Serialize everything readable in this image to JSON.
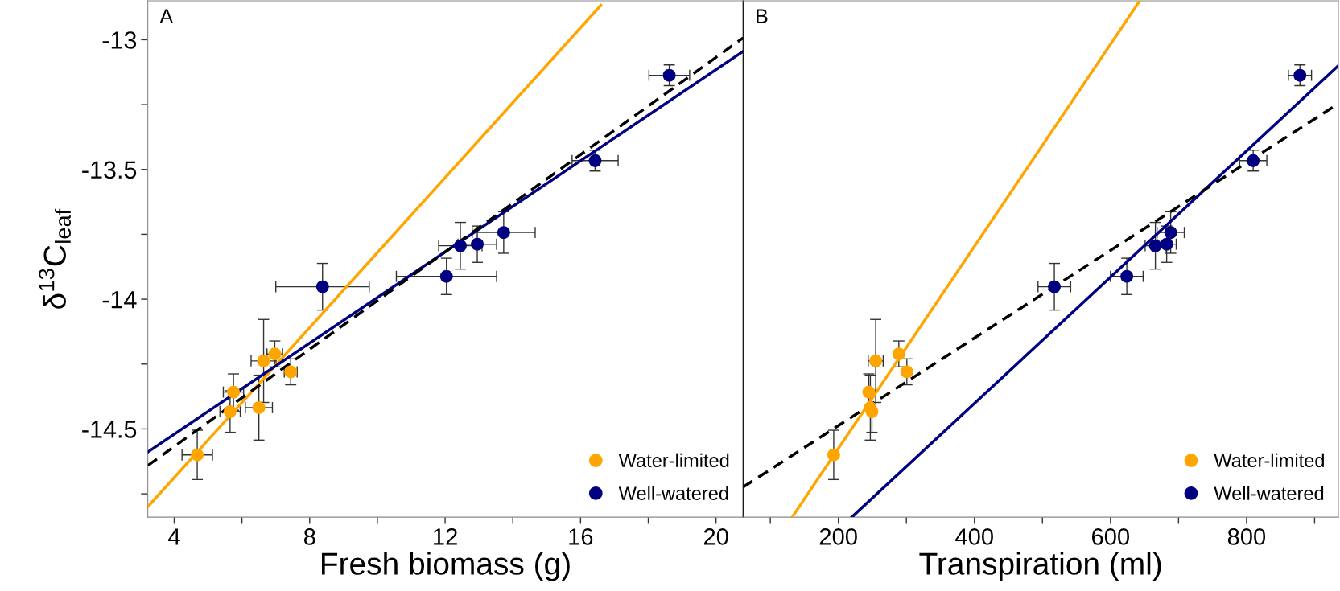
{
  "chart_data": [
    {
      "type": "scatter",
      "title": "A",
      "xlabel": "Fresh biomass (g)",
      "ylabel": "δ$^{13}$C$_{leaf}$",
      "xlim": [
        3.22,
        20.8
      ],
      "xticks": [
        4,
        {
          "value": 6,
          "label": null
        },
        8,
        {
          "value": 10,
          "label": null
        },
        12,
        {
          "value": 14,
          "label": null
        },
        16,
        {
          "value": 18,
          "label": null
        },
        20
      ],
      "ylim": [
        -14.84,
        -12.85
      ],
      "yticks": [
        {
          "value": -14.75,
          "label": null
        },
        -14.5,
        {
          "value": -14.25,
          "label": null
        },
        -14,
        {
          "value": -13.75,
          "label": null
        },
        -13.5,
        {
          "value": -13.25,
          "label": null
        },
        -13
      ],
      "grid": false,
      "legend": "bottom right",
      "marker": "circle",
      "series": [
        {
          "name": "Water-limited",
          "color": "#ffa500",
          "x": [
            4.68,
            5.75,
            5.65,
            6.64,
            6.97,
            7.44,
            6.5
          ],
          "values": [
            -14.6,
            -14.358,
            -14.433,
            -14.238,
            -14.211,
            -14.28,
            -14.418
          ],
          "errors": [
            0.095,
            0.07,
            0.08,
            0.16,
            0.05,
            0.05,
            0.125
          ],
          "xerrors": [
            0.45,
            0.3,
            0.3,
            0.37,
            0.23,
            0.19,
            0.4
          ]
        },
        {
          "name": "Well-watered",
          "color": "#000080",
          "x": [
            8.38,
            12.04,
            12.45,
            12.95,
            13.73,
            16.43,
            18.62
          ],
          "values": [
            -13.952,
            -13.912,
            -13.794,
            -13.788,
            -13.743,
            -13.466,
            -13.137
          ],
          "errors": [
            0.09,
            0.07,
            0.09,
            0.07,
            0.08,
            0.04,
            0.04
          ],
          "xerrors": [
            1.38,
            1.48,
            0.64,
            0.57,
            0.93,
            0.68,
            0.6
          ]
        },
        {
          "type": "line",
          "marker": "none",
          "color": "#ffa500",
          "line_style": "solid",
          "x": [
            3.22,
            16.6
          ],
          "values": [
            -14.8,
            -12.867
          ]
        },
        {
          "type": "line",
          "marker": "none",
          "color": "#000080",
          "line_style": "solid",
          "x": [
            3.22,
            20.8
          ],
          "values": [
            -14.589,
            -13.045
          ]
        },
        {
          "type": "line",
          "marker": "none",
          "color": "#000000",
          "line_style": "dashed",
          "x": [
            3.22,
            20.8
          ],
          "values": [
            -14.641,
            -12.993
          ]
        }
      ]
    },
    {
      "type": "scatter",
      "title": "B",
      "xlabel": "Transpiration (ml)",
      "tick_labels": "x",
      "xlim": [
        60,
        935
      ],
      "xticks": [
        {
          "value": 100,
          "label": null
        },
        200,
        {
          "value": 300,
          "label": null
        },
        400,
        {
          "value": 500,
          "label": null
        },
        600,
        {
          "value": 700,
          "label": null
        },
        800,
        {
          "value": 900,
          "label": null
        }
      ],
      "ylim": [
        -14.84,
        -12.85
      ],
      "grid": false,
      "legend": "bottom right",
      "marker": "circle",
      "series": [
        {
          "name": "Water-limited",
          "color": "#ffa500",
          "x": [
            193.2,
            244.7,
            249.4,
            254.9,
            288.9,
            300.7,
            247
          ],
          "values": [
            -14.6,
            -14.358,
            -14.433,
            -14.238,
            -14.211,
            -14.28,
            -14.418
          ],
          "errors": [
            0.095,
            0.07,
            0.08,
            0.16,
            0.05,
            0.05,
            0.125
          ],
          "xerrors": [
            null,
            null,
            null,
            11,
            null,
            null,
            null
          ]
        },
        {
          "name": "Well-watered",
          "color": "#000080",
          "x": [
            517.5,
            624,
            666,
            682.6,
            688.5,
            809.8,
            878.5
          ],
          "values": [
            -13.952,
            -13.912,
            -13.794,
            -13.788,
            -13.743,
            -13.466,
            -13.137
          ],
          "errors": [
            0.09,
            0.07,
            0.09,
            0.07,
            0.08,
            0.04,
            0.04
          ],
          "xerrors": [
            24,
            24,
            15,
            14,
            20,
            20,
            17
          ]
        },
        {
          "type": "line",
          "marker": "none",
          "color": "#ffa500",
          "line_style": "solid",
          "x": [
            132.1,
            643
          ],
          "values": [
            -14.84,
            -12.85
          ]
        },
        {
          "type": "line",
          "marker": "none",
          "color": "#000080",
          "line_style": "solid",
          "x": [
            219.8,
            935
          ],
          "values": [
            -14.84,
            -13.1
          ]
        },
        {
          "type": "line",
          "marker": "none",
          "color": "#000000",
          "line_style": "dashed",
          "x": [
            60,
            935
          ],
          "values": [
            -14.724,
            -13.246
          ]
        }
      ]
    }
  ]
}
